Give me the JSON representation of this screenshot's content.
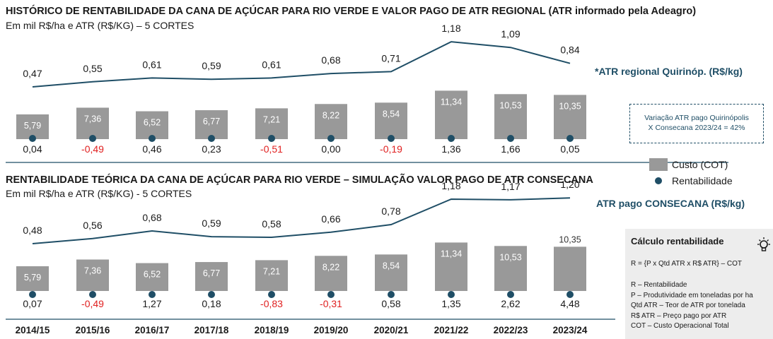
{
  "chart_data": [
    {
      "type": "bar",
      "title": "HISTÓRICO DE RENTABILIDADE DA CANA DE AÇÚCAR PARA RIO VERDE E VALOR PAGO DE ATR REGIONAL (ATR informado pela Adeagro)",
      "subtitle": "Em mil R$/ha e ATR (R$/KG) – 5 CORTES",
      "categories": [
        "2014/15",
        "2015/16",
        "2016/17",
        "2017/18",
        "2018/19",
        "2019/20",
        "2020/21",
        "2021/22",
        "2022/23",
        "2023/24"
      ],
      "series": [
        {
          "name": "Custo (COT)",
          "type": "bar",
          "values": [
            5.79,
            7.36,
            6.52,
            6.77,
            7.21,
            8.22,
            8.54,
            11.34,
            10.53,
            10.35
          ],
          "labels": [
            "5,79",
            "7,36",
            "6,52",
            "6,77",
            "7,21",
            "8,22",
            "8,54",
            "11,34",
            "10,53",
            "10,35"
          ]
        },
        {
          "name": "Rentabilidade",
          "type": "dot",
          "values": [
            0.04,
            -0.49,
            0.46,
            0.23,
            -0.51,
            0.0,
            -0.19,
            1.36,
            1.66,
            0.05
          ],
          "labels": [
            "0,04",
            "-0,49",
            "0,46",
            "0,23",
            "-0,51",
            "0,00",
            "-0,19",
            "1,36",
            "1,66",
            "0,05"
          ]
        },
        {
          "name": "*ATR regional Quirinóp. (R$/kg)",
          "type": "line",
          "values": [
            0.47,
            0.55,
            0.61,
            0.59,
            0.61,
            0.68,
            0.71,
            1.18,
            1.09,
            0.84
          ],
          "labels": [
            "0,47",
            "0,55",
            "0,61",
            "0,59",
            "0,61",
            "0,68",
            "0,71",
            "1,18",
            "1,09",
            "0,84"
          ]
        }
      ]
    },
    {
      "type": "bar",
      "title": "RENTABILIDADE TEÓRICA DA CANA DE AÇÚCAR PARA RIO VERDE – SIMULAÇÃO VALOR PAGO DE ATR CONSECANA",
      "subtitle": "Em mil R$/ha e ATR (R$/KG)  - 5 CORTES",
      "categories": [
        "2014/15",
        "2015/16",
        "2016/17",
        "2017/18",
        "2018/19",
        "2019/20",
        "2020/21",
        "2021/22",
        "2022/23",
        "2023/24"
      ],
      "series": [
        {
          "name": "Custo (COT)",
          "type": "bar",
          "values": [
            5.79,
            7.36,
            6.52,
            6.77,
            7.21,
            8.22,
            8.54,
            11.34,
            10.53,
            10.35
          ],
          "labels": [
            "5,79",
            "7,36",
            "6,52",
            "6,77",
            "7,21",
            "8,22",
            "8,54",
            "11,34",
            "10,53",
            "10,35"
          ]
        },
        {
          "name": "Rentabilidade",
          "type": "dot",
          "values": [
            0.07,
            -0.49,
            1.27,
            0.18,
            -0.83,
            -0.31,
            0.58,
            1.35,
            2.62,
            4.48
          ],
          "labels": [
            "0,07",
            "-0,49",
            "1,27",
            "0,18",
            "-0,83",
            "-0,31",
            "0,58",
            "1,35",
            "2,62",
            "4,48"
          ]
        },
        {
          "name": "ATR pago CONSECANA (R$/kg)",
          "type": "line",
          "values": [
            0.48,
            0.56,
            0.68,
            0.59,
            0.58,
            0.66,
            0.78,
            1.18,
            1.17,
            1.2
          ],
          "labels": [
            "0,48",
            "0,56",
            "0,68",
            "0,59",
            "0,58",
            "0,66",
            "0,78",
            "1,18",
            "1,17",
            "1,20"
          ]
        }
      ]
    }
  ],
  "legend": {
    "bar": "Custo (COT)",
    "dot": "Rentabilidade"
  },
  "note": {
    "line1": "Variação ATR pago Quirinópolis",
    "line2": "X Consecana 2023/24 = 42%"
  },
  "calc": {
    "title": "Cálculo rentabilidade",
    "formula": "R = {P x Qtd ATR x R$ ATR} – COT",
    "items": [
      "R – Rentabilidade",
      "P – Produtividade em toneladas por ha",
      "Qtd ATR – Teor de ATR por tonelada",
      "R$ ATR – Preço pago por ATR",
      "COT – Custo Operacional Total"
    ]
  },
  "colors": {
    "bar": "#999999",
    "line": "#1f4e66",
    "dot": "#1f4e66",
    "negative": "#e02020",
    "text": "#1a1a1a"
  }
}
